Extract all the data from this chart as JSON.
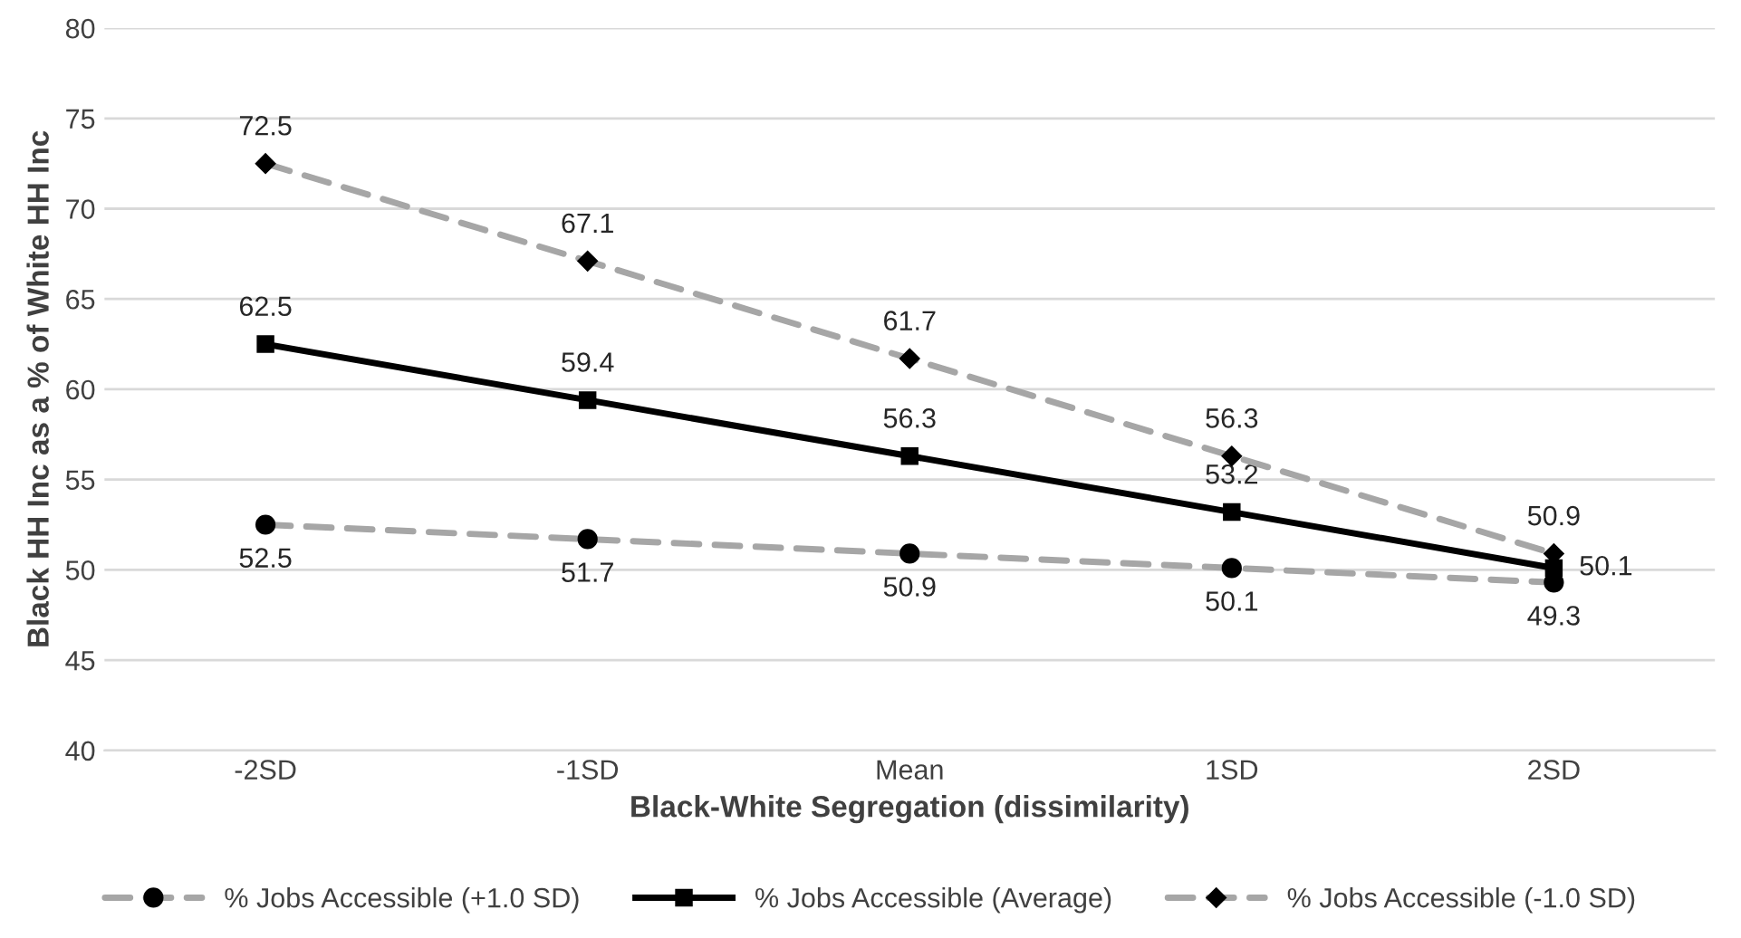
{
  "chart_data": {
    "type": "line",
    "xlabel": "Black-White Segregation (dissimilarity)",
    "ylabel": "Black HH Inc as a % of White HH Inc",
    "categories": [
      "-2SD",
      "-1SD",
      "Mean",
      "1SD",
      "2SD"
    ],
    "series": [
      {
        "name": "% Jobs Accessible (+1.0 SD)",
        "color": "#a6a6a6",
        "values": [
          52.5,
          51.7,
          50.9,
          50.1,
          49.3
        ],
        "marker": "circle",
        "line_style": "dashed"
      },
      {
        "name": "% Jobs Accessible (Average)",
        "color": "#000000",
        "values": [
          62.5,
          59.4,
          56.3,
          53.2,
          50.1
        ],
        "marker": "square",
        "line_style": "solid"
      },
      {
        "name": "% Jobs Accessible (-1.0 SD)",
        "color": "#a6a6a6",
        "values": [
          72.5,
          67.1,
          61.7,
          56.3,
          50.9
        ],
        "marker": "diamond",
        "line_style": "dashed"
      }
    ],
    "ylim": [
      40,
      80
    ],
    "yticks": [
      40,
      45,
      50,
      55,
      60,
      65,
      70,
      75,
      80
    ],
    "grid": "y",
    "legend": "bottom",
    "data_labels": true
  }
}
